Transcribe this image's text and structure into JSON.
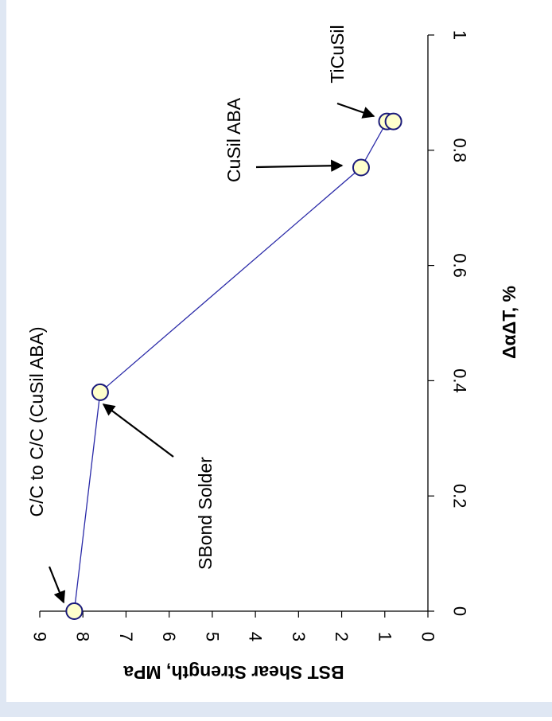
{
  "colors": {
    "background": "#ffffff",
    "border_left": "#dfe7f3",
    "border_bottom": "#dfe7f3",
    "line": "#2a2aa8",
    "marker_fill": "#ffffcc",
    "marker_stroke": "#1a1a7a",
    "axis": "#000000"
  },
  "chart_data": {
    "type": "scatter",
    "orientation": "rotated-90",
    "xlabel": "BST Shear Strength, MPa",
    "ylabel": "ΔαΔT, %",
    "xlim": [
      0,
      9
    ],
    "ylim": [
      0,
      1
    ],
    "x_ticks": [
      "0",
      "1",
      "2",
      "3",
      "4",
      "5",
      "6",
      "7",
      "8",
      "9"
    ],
    "y_ticks": [
      "0",
      "0.2",
      "0.4",
      "0.6",
      "0.8",
      "1"
    ],
    "series": [
      {
        "values": [
          {
            "x": 8.2,
            "y": 0.0
          },
          {
            "x": 7.6,
            "y": 0.38
          },
          {
            "x": 1.55,
            "y": 0.77
          },
          {
            "x": 0.95,
            "y": 0.85
          },
          {
            "x": 0.8,
            "y": 0.85
          }
        ]
      }
    ],
    "annotations": [
      {
        "text": "C/C to C/C (CuSil ABA)",
        "point_index": 0
      },
      {
        "text": "SBond Solder",
        "point_index": 1
      },
      {
        "text": "CuSil ABA",
        "point_index": 2
      },
      {
        "text": "TiCuSil",
        "point_index": 3
      }
    ],
    "grid": false,
    "legend": "none"
  }
}
